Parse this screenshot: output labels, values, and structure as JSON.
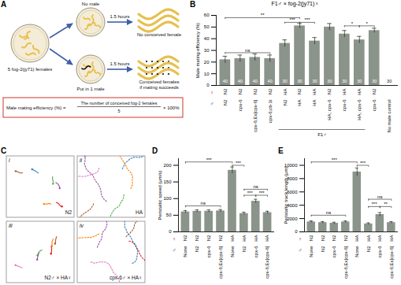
{
  "chart_data": [
    {
      "panel": "B",
      "type": "bar",
      "title": "F1♂ × fog-2(jy71)♀",
      "y_label": "Male mating efficiency (%)",
      "row_labels": [
        "♀",
        "♂"
      ],
      "categories_female": [
        "N2",
        "N2",
        "N2",
        "N2",
        "HA",
        "N2",
        "HA",
        "N2",
        "HA",
        "HA",
        "N2",
        null
      ],
      "categories": [
        "N2",
        "cpx-6",
        "cpx-6;Ex[cpx-6]",
        "cpx-6;cb-1t",
        "N2",
        "HA",
        "HA",
        "HA; cpx-6",
        "cpx-6",
        "HA; cpx-6",
        "cpx-6",
        "No male control"
      ],
      "values": [
        22,
        23,
        24,
        23,
        36,
        51,
        38,
        50,
        44,
        39,
        47,
        0
      ],
      "errors": [
        3,
        3,
        3,
        3,
        3,
        2,
        3,
        3,
        3,
        3,
        2,
        0
      ],
      "n": [
        40,
        40,
        40,
        40,
        30,
        30,
        30,
        30,
        30,
        30,
        30,
        30
      ],
      "color": "#8b948a",
      "ylim": [
        0,
        60
      ],
      "yticks": [
        0,
        10,
        20,
        30,
        40,
        50,
        60
      ],
      "grid": false,
      "group": {
        "label": "F1♂",
        "from": 4,
        "to": 9
      },
      "significance": [
        {
          "label": "ns",
          "from": 0,
          "to": 3,
          "y": 28
        },
        {
          "label": "**",
          "from": 0,
          "to": 5,
          "y": 58
        },
        {
          "label": "***",
          "from": 4,
          "to": 5,
          "y": 54
        },
        {
          "label": "***",
          "from": 5,
          "to": 6,
          "y": 54
        },
        {
          "label": "*",
          "from": 8,
          "to": 9,
          "y": 51
        },
        {
          "label": "*",
          "from": 9,
          "to": 10,
          "y": 51
        }
      ]
    },
    {
      "panel": "D",
      "type": "bar",
      "y_label": "Peristaltic speed (μm/s)",
      "row_labels": [
        "♀",
        "♂"
      ],
      "categories_female": [
        "N2",
        "N2",
        "N2",
        "N2",
        "HA",
        "HA",
        "HA",
        "HA"
      ],
      "categories": [
        "None",
        "N2",
        "cpx-6",
        "cpx-6;Ex[cpx-6]",
        "None",
        "N2",
        "cpx-6",
        "cpx-6;Ex[cpx-6]"
      ],
      "values": [
        60,
        62,
        62,
        63,
        185,
        55,
        92,
        58
      ],
      "errors": [
        4,
        4,
        4,
        4,
        10,
        4,
        6,
        4
      ],
      "color": "#8b948a",
      "ylim": [
        0,
        220
      ],
      "yticks": [
        0,
        50,
        100,
        150,
        200
      ],
      "grid": false,
      "significance": [
        {
          "label": "ns",
          "from": 0,
          "to": 3,
          "y": 78
        },
        {
          "label": "***",
          "from": 0,
          "to": 4,
          "y": 210
        },
        {
          "label": "***",
          "from": 4,
          "to": 5,
          "y": 200
        },
        {
          "label": "ns",
          "from": 5,
          "to": 7,
          "y": 128
        },
        {
          "label": "***",
          "from": 5,
          "to": 6,
          "y": 110
        },
        {
          "label": "***",
          "from": 6,
          "to": 7,
          "y": 110
        }
      ]
    },
    {
      "panel": "E",
      "type": "bar",
      "y_label": "Peristaltic track length (μm)",
      "row_labels": [
        "♀",
        "♂"
      ],
      "categories_female": [
        "N2",
        "N2",
        "N2",
        "N2",
        "HA",
        "HA",
        "HA",
        "HA"
      ],
      "categories": [
        "None",
        "N2",
        "cpx-6",
        "cpx-6;Ex[cpx-6]",
        "None",
        "N2",
        "cpx-6",
        "cpx-6;Ex[cpx-6]"
      ],
      "values": [
        1500,
        1400,
        1300,
        1500,
        9000,
        1200,
        2600,
        1400
      ],
      "errors": [
        150,
        150,
        150,
        150,
        600,
        150,
        300,
        150
      ],
      "color": "#8b948a",
      "ylim": [
        0,
        11000
      ],
      "yticks": [
        0,
        2000,
        4000,
        6000,
        8000,
        10000
      ],
      "grid": false,
      "significance": [
        {
          "label": "ns",
          "from": 0,
          "to": 3,
          "y": 2500
        },
        {
          "label": "***",
          "from": 0,
          "to": 4,
          "y": 10500
        },
        {
          "label": "***",
          "from": 4,
          "to": 5,
          "y": 10000
        },
        {
          "label": "ns",
          "from": 5,
          "to": 7,
          "y": 4900
        },
        {
          "label": "***",
          "from": 5,
          "to": 6,
          "y": 3800
        },
        {
          "label": "**",
          "from": 6,
          "to": 7,
          "y": 3800
        }
      ]
    }
  ],
  "diagram": {
    "panel": "A",
    "source": "5 fog-2(jy71) females",
    "branches": [
      {
        "label": "No male",
        "time": "1.5 hours",
        "result": [
          "No conceived female"
        ]
      },
      {
        "label": "Put in 1 male",
        "time": "1.5 hours",
        "result": [
          "Conceived females",
          "if mating succeeds"
        ]
      }
    ],
    "formula": {
      "left": "Male mating efficiency (%) =",
      "numerator": "The number of conceived fog-2 females",
      "denominator": "5",
      "right": "× 100%"
    }
  },
  "track_images": {
    "panel": "C",
    "images": [
      {
        "numeral": "i",
        "caption": "N2"
      },
      {
        "numeral": "ii",
        "caption": "HA"
      },
      {
        "numeral": "iii",
        "caption": "N2♂ × HA♀"
      },
      {
        "numeral": "iv",
        "caption": "cpx-6♂ × HA♀"
      }
    ]
  }
}
